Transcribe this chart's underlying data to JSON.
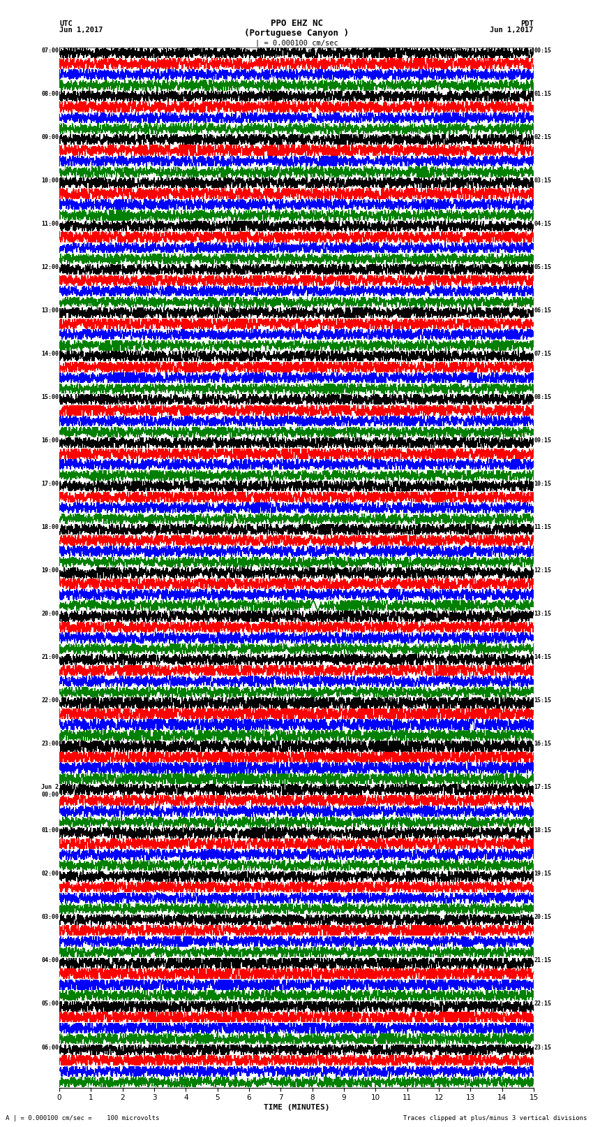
{
  "title_line1": "PPO EHZ NC",
  "title_line2": "(Portuguese Canyon )",
  "title_line3": "| = 0.000100 cm/sec",
  "xlabel": "TIME (MINUTES)",
  "footer_left": "A | = 0.000100 cm/sec =    100 microvolts",
  "footer_right": "Traces clipped at plus/minus 3 vertical divisions",
  "colors": [
    "black",
    "red",
    "blue",
    "green"
  ],
  "bg_color": "white",
  "num_hours": 24,
  "traces_per_hour": 4,
  "xmin": 0,
  "xmax": 15,
  "utc_labels": [
    "07:00",
    "08:00",
    "09:00",
    "10:00",
    "11:00",
    "12:00",
    "13:00",
    "14:00",
    "15:00",
    "16:00",
    "17:00",
    "18:00",
    "19:00",
    "20:00",
    "21:00",
    "22:00",
    "23:00",
    "Jun 2\n00:00",
    "01:00",
    "02:00",
    "03:00",
    "04:00",
    "05:00",
    "06:00"
  ],
  "pdt_labels": [
    "00:15",
    "01:15",
    "02:15",
    "03:15",
    "04:15",
    "05:15",
    "06:15",
    "07:15",
    "08:15",
    "09:15",
    "10:15",
    "11:15",
    "12:15",
    "13:15",
    "14:15",
    "15:15",
    "16:15",
    "17:15",
    "18:15",
    "19:15",
    "20:15",
    "21:15",
    "22:15",
    "23:15"
  ],
  "grid_color": "#888888",
  "grid_lw": 0.3,
  "trace_lw": 0.5,
  "noise_base_amp": 0.3,
  "clip_val": 0.44
}
